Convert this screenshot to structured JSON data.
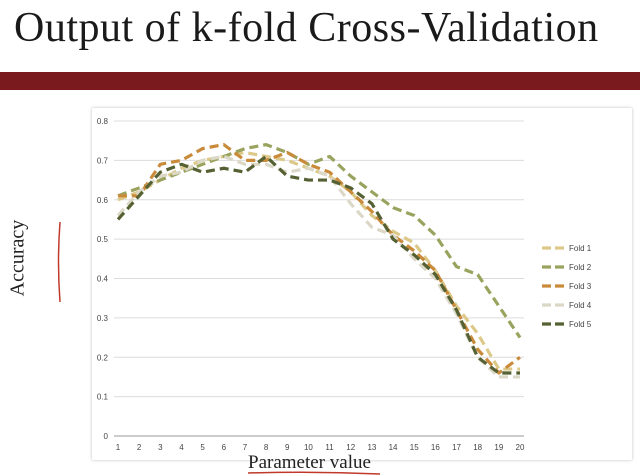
{
  "slide": {
    "title": "Output of k-fold Cross-Validation",
    "accent_color": "#7a1a1f"
  },
  "chart_data": {
    "type": "line",
    "xlabel": "Parameter value",
    "ylabel": "Accuracy",
    "x": [
      1,
      2,
      3,
      4,
      5,
      6,
      7,
      8,
      9,
      10,
      11,
      12,
      13,
      14,
      15,
      16,
      17,
      18,
      19,
      20
    ],
    "xlim": [
      1,
      20
    ],
    "ylim": [
      0,
      0.8
    ],
    "y_ticks": [
      0,
      0.1,
      0.2,
      0.3,
      0.4,
      0.5,
      0.6,
      0.7,
      0.8
    ],
    "y_tick_labels": [
      "0",
      "0.1",
      "0.2",
      "0.3",
      "0.4",
      "0.5",
      "0.6",
      "0.7",
      "0.8"
    ],
    "x_tick_labels": [
      "1",
      "2",
      "3",
      "4",
      "5",
      "6",
      "7",
      "8",
      "9",
      "10",
      "11",
      "12",
      "13",
      "14",
      "15",
      "16",
      "17",
      "18",
      "19",
      "20"
    ],
    "grid": "horizontal",
    "legend_position": "right",
    "line_style": "dashed",
    "series": [
      {
        "name": "Fold 1",
        "color": "#dcc98a",
        "values": [
          0.6,
          0.62,
          0.65,
          0.68,
          0.7,
          0.71,
          0.72,
          0.71,
          0.7,
          0.68,
          0.66,
          0.62,
          0.56,
          0.52,
          0.49,
          0.42,
          0.33,
          0.26,
          0.17,
          0.17
        ]
      },
      {
        "name": "Fold 2",
        "color": "#9aa35e",
        "values": [
          0.61,
          0.63,
          0.65,
          0.67,
          0.69,
          0.71,
          0.73,
          0.74,
          0.72,
          0.69,
          0.71,
          0.66,
          0.62,
          0.58,
          0.56,
          0.51,
          0.43,
          0.41,
          0.33,
          0.25
        ]
      },
      {
        "name": "Fold 3",
        "color": "#c98a3a",
        "values": [
          0.61,
          0.61,
          0.69,
          0.7,
          0.73,
          0.74,
          0.7,
          0.7,
          0.72,
          0.69,
          0.67,
          0.62,
          0.57,
          0.51,
          0.47,
          0.42,
          0.32,
          0.22,
          0.16,
          0.2
        ]
      },
      {
        "name": "Fold 4",
        "color": "#dcd8c8",
        "values": [
          0.56,
          0.62,
          0.66,
          0.67,
          0.7,
          0.71,
          0.69,
          0.69,
          0.67,
          0.68,
          0.66,
          0.59,
          0.53,
          0.51,
          0.45,
          0.4,
          0.31,
          0.2,
          0.15,
          0.15
        ]
      },
      {
        "name": "Fold 5",
        "color": "#556133",
        "values": [
          0.55,
          0.61,
          0.67,
          0.69,
          0.67,
          0.68,
          0.67,
          0.71,
          0.66,
          0.65,
          0.65,
          0.63,
          0.59,
          0.5,
          0.46,
          0.41,
          0.32,
          0.2,
          0.16,
          0.16
        ]
      }
    ]
  }
}
